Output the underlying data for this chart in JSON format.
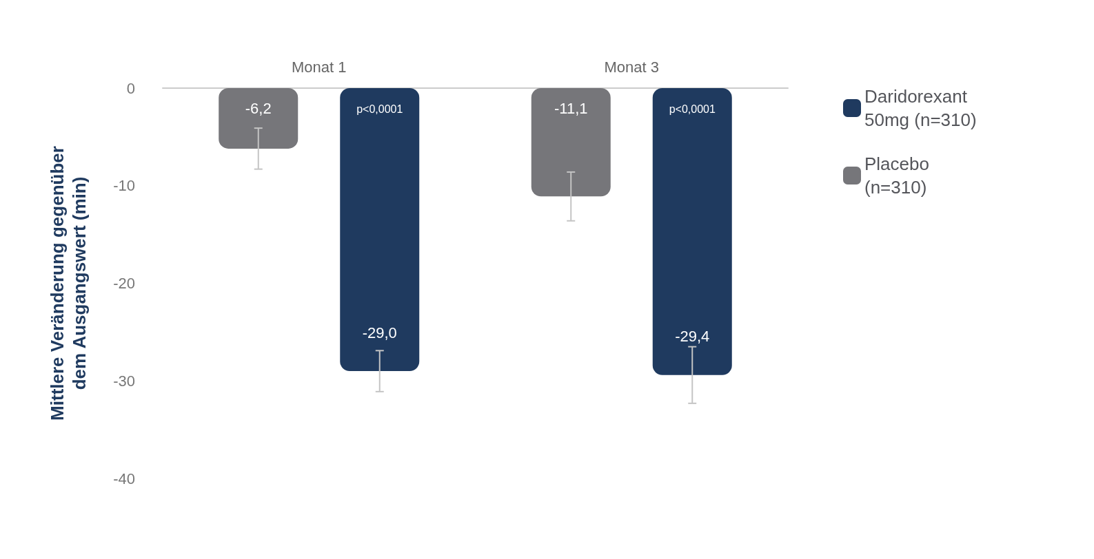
{
  "chart_data": {
    "type": "bar",
    "ylabel": "Mittlere Veränderung gegenüber dem Ausgangswert (min)",
    "categories": [
      "Monat 1",
      "Monat 3"
    ],
    "series": [
      {
        "name": "Placebo (n=310)",
        "color": "#76767a",
        "values": [
          -6.2,
          -11.1
        ],
        "errors": [
          2.1,
          2.5
        ],
        "value_labels": [
          "-6,2",
          "-11,1"
        ]
      },
      {
        "name": "Daridorexant 50mg (n=310)",
        "color": "#1f3a5f",
        "values": [
          -29.0,
          -29.4
        ],
        "errors": [
          2.1,
          2.9
        ],
        "value_labels": [
          "-29,0",
          "-29,4"
        ]
      }
    ],
    "annotations": [
      "p<0,0001",
      "p<0,0001"
    ],
    "ylim": [
      -40,
      0
    ],
    "yticks": [
      0,
      -10,
      -20,
      -30,
      -40
    ],
    "grid": false,
    "legend": "top right"
  }
}
